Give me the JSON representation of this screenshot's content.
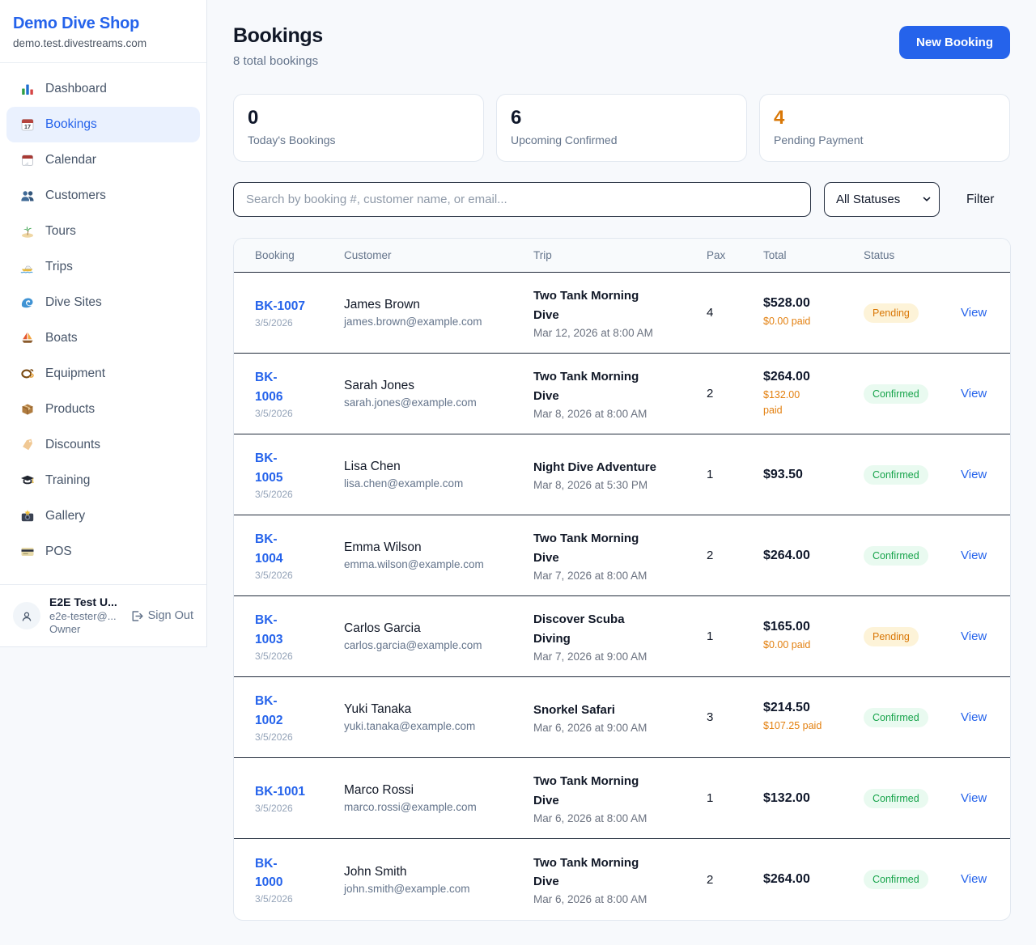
{
  "sidebar": {
    "brand": {
      "name": "Demo Dive Shop",
      "domain": "demo.test.divestreams.com"
    },
    "items": [
      {
        "label": "Dashboard",
        "icon": "dashboard-icon",
        "active": false
      },
      {
        "label": "Bookings",
        "icon": "bookings-calendar-icon",
        "active": true
      },
      {
        "label": "Calendar",
        "icon": "calendar-icon",
        "active": false
      },
      {
        "label": "Customers",
        "icon": "customers-icon",
        "active": false
      },
      {
        "label": "Tours",
        "icon": "tours-island-icon",
        "active": false
      },
      {
        "label": "Trips",
        "icon": "trips-boat-icon",
        "active": false
      },
      {
        "label": "Dive Sites",
        "icon": "dive-sites-wave-icon",
        "active": false
      },
      {
        "label": "Boats",
        "icon": "boats-sailboat-icon",
        "active": false
      },
      {
        "label": "Equipment",
        "icon": "equipment-mask-icon",
        "active": false
      },
      {
        "label": "Products",
        "icon": "products-package-icon",
        "active": false
      },
      {
        "label": "Discounts",
        "icon": "discounts-tag-icon",
        "active": false
      },
      {
        "label": "Training",
        "icon": "training-grad-cap-icon",
        "active": false
      },
      {
        "label": "Gallery",
        "icon": "gallery-camera-icon",
        "active": false
      },
      {
        "label": "POS",
        "icon": "pos-credit-card-icon",
        "active": false
      }
    ],
    "user": {
      "name": "E2E Test U...",
      "email": "e2e-tester@...",
      "role": "Owner",
      "sign_out_label": "Sign Out"
    }
  },
  "header": {
    "title": "Bookings",
    "subtitle": "8 total bookings",
    "new_booking_label": "New Booking"
  },
  "stats": [
    {
      "value": "0",
      "label": "Today's Bookings",
      "accent": "dark"
    },
    {
      "value": "6",
      "label": "Upcoming Confirmed",
      "accent": "dark"
    },
    {
      "value": "4",
      "label": "Pending Payment",
      "accent": "orange"
    }
  ],
  "filters": {
    "search_placeholder": "Search by booking #, customer name, or email...",
    "search_value": "",
    "status_selected": "All Statuses",
    "filter_label": "Filter"
  },
  "table": {
    "columns": [
      "Booking",
      "Customer",
      "Trip",
      "Pax",
      "Total",
      "Status"
    ],
    "view_label": "View",
    "rows": [
      {
        "id": "BK-1007",
        "date": "3/5/2026",
        "customer_name": "James Brown",
        "customer_email": "james.brown@example.com",
        "trip_name": "Two Tank Morning Dive",
        "trip_datetime": "Mar 12, 2026 at 8:00 AM",
        "pax": "4",
        "total": "$528.00",
        "paid": "$0.00 paid",
        "status": "Pending"
      },
      {
        "id": "BK-\n1006",
        "date": "3/5/2026",
        "customer_name": "Sarah Jones",
        "customer_email": "sarah.jones@example.com",
        "trip_name": "Two Tank Morning Dive",
        "trip_datetime": "Mar 8, 2026 at 8:00 AM",
        "pax": "2",
        "total": "$264.00",
        "paid": "$132.00\npaid",
        "status": "Confirmed"
      },
      {
        "id": "BK-\n1005",
        "date": "3/5/2026",
        "customer_name": "Lisa Chen",
        "customer_email": "lisa.chen@example.com",
        "trip_name": "Night Dive Adventure",
        "trip_datetime": "Mar 8, 2026 at 5:30 PM",
        "pax": "1",
        "total": "$93.50",
        "paid": null,
        "status": "Confirmed"
      },
      {
        "id": "BK-\n1004",
        "date": "3/5/2026",
        "customer_name": "Emma Wilson",
        "customer_email": "emma.wilson@example.com",
        "trip_name": "Two Tank Morning Dive",
        "trip_datetime": "Mar 7, 2026 at 8:00 AM",
        "pax": "2",
        "total": "$264.00",
        "paid": null,
        "status": "Confirmed"
      },
      {
        "id": "BK-\n1003",
        "date": "3/5/2026",
        "customer_name": "Carlos Garcia",
        "customer_email": "carlos.garcia@example.com",
        "trip_name": "Discover Scuba Diving",
        "trip_datetime": "Mar 7, 2026 at 9:00 AM",
        "pax": "1",
        "total": "$165.00",
        "paid": "$0.00 paid",
        "status": "Pending"
      },
      {
        "id": "BK-\n1002",
        "date": "3/5/2026",
        "customer_name": "Yuki Tanaka",
        "customer_email": "yuki.tanaka@example.com",
        "trip_name": "Snorkel Safari",
        "trip_datetime": "Mar 6, 2026 at 9:00 AM",
        "pax": "3",
        "total": "$214.50",
        "paid": "$107.25 paid",
        "status": "Confirmed"
      },
      {
        "id": "BK-1001",
        "date": "3/5/2026",
        "customer_name": "Marco Rossi",
        "customer_email": "marco.rossi@example.com",
        "trip_name": "Two Tank Morning Dive",
        "trip_datetime": "Mar 6, 2026 at 8:00 AM",
        "pax": "1",
        "total": "$132.00",
        "paid": null,
        "status": "Confirmed"
      },
      {
        "id": "BK-\n1000",
        "date": "3/5/2026",
        "customer_name": "John Smith",
        "customer_email": "john.smith@example.com",
        "trip_name": "Two Tank Morning Dive",
        "trip_datetime": "Mar 6, 2026 at 8:00 AM",
        "pax": "2",
        "total": "$264.00",
        "paid": null,
        "status": "Confirmed"
      }
    ]
  },
  "colors": {
    "accent_blue": "#2563eb",
    "pending_orange": "#d97706",
    "confirmed_green": "#16a34a",
    "stat_orange": "#d97706"
  }
}
